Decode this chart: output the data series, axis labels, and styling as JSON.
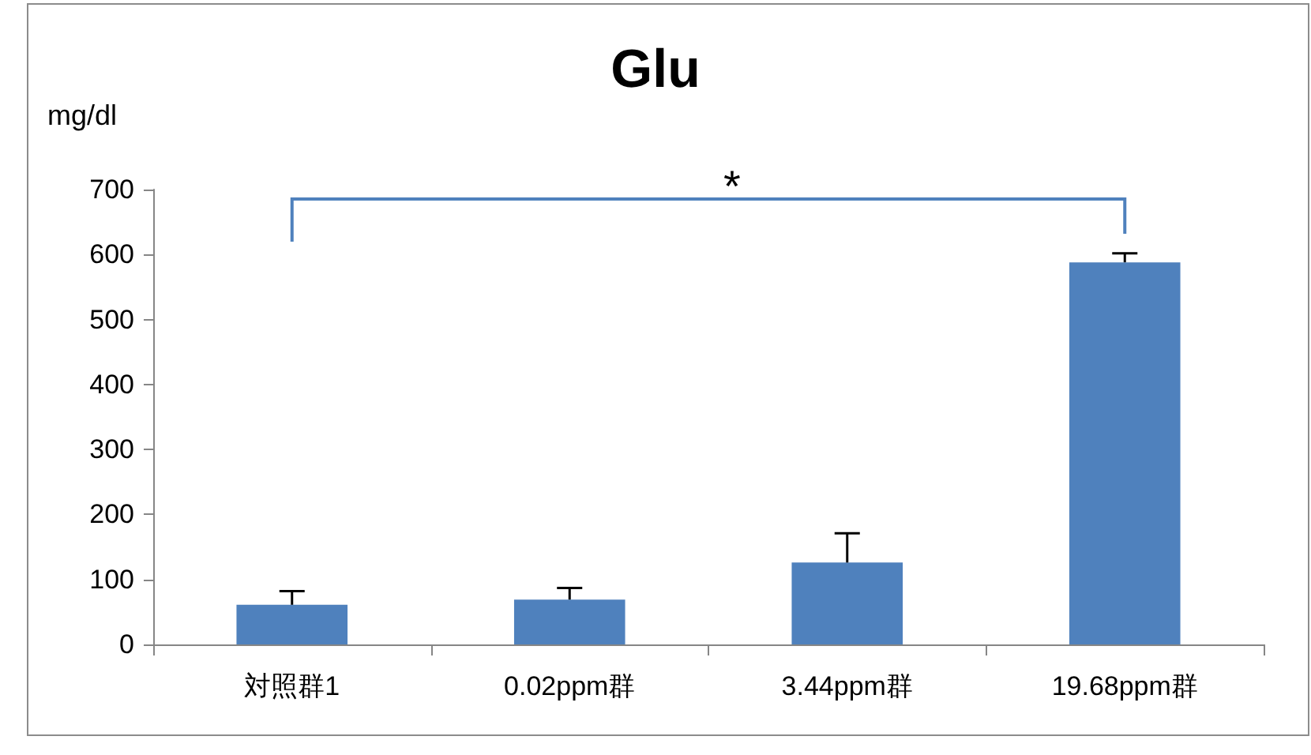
{
  "chart_data": {
    "type": "bar",
    "title": "Glu",
    "ylabel": "mg/dl",
    "categories": [
      "対照群1",
      "0.02ppm群",
      "3.44ppm群",
      "19.68ppm群"
    ],
    "values": [
      61,
      69,
      126,
      588
    ],
    "errors": [
      [
        61,
        82
      ],
      [
        69,
        87
      ],
      [
        126,
        171
      ],
      [
        588,
        602
      ]
    ],
    "color": "#4f81bd",
    "ylim": [
      0,
      700
    ],
    "yticks": [
      0,
      100,
      200,
      300,
      400,
      500,
      600,
      700
    ],
    "grid": false,
    "annotations": [
      "*"
    ]
  }
}
